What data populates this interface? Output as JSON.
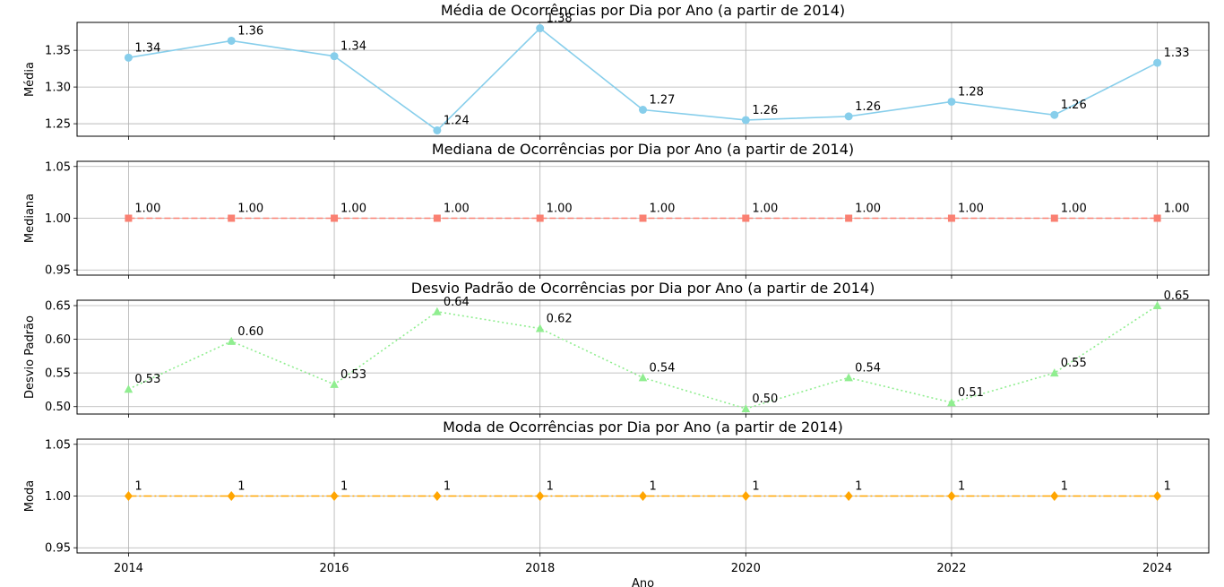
{
  "chart_data": [
    {
      "type": "line",
      "title": "Média de Ocorrências por Dia por Ano (a partir de 2014)",
      "ylabel": "Média",
      "x": [
        2014,
        2015,
        2016,
        2017,
        2018,
        2019,
        2020,
        2021,
        2022,
        2023,
        2024
      ],
      "values": [
        1.34,
        1.363,
        1.342,
        1.241,
        1.38,
        1.269,
        1.255,
        1.26,
        1.28,
        1.262,
        1.333
      ],
      "labels": [
        "1.34",
        "1.36",
        "1.34",
        "1.24",
        "1.38",
        "1.27",
        "1.26",
        "1.26",
        "1.28",
        "1.26",
        "1.33"
      ],
      "ylim": [
        1.233,
        1.388
      ],
      "yticks": [
        1.25,
        1.3,
        1.35
      ],
      "ytick_labels": [
        "1.25",
        "1.30",
        "1.35"
      ],
      "color": "#87ceeb",
      "line_style": "solid",
      "marker": "circle",
      "grid": true
    },
    {
      "type": "line",
      "title": "Mediana de Ocorrências por Dia por Ano (a partir de 2014)",
      "ylabel": "Mediana",
      "x": [
        2014,
        2015,
        2016,
        2017,
        2018,
        2019,
        2020,
        2021,
        2022,
        2023,
        2024
      ],
      "values": [
        1,
        1,
        1,
        1,
        1,
        1,
        1,
        1,
        1,
        1,
        1
      ],
      "labels": [
        "1.00",
        "1.00",
        "1.00",
        "1.00",
        "1.00",
        "1.00",
        "1.00",
        "1.00",
        "1.00",
        "1.00",
        "1.00"
      ],
      "ylim": [
        0.945,
        1.055
      ],
      "yticks": [
        0.95,
        1.0,
        1.05
      ],
      "ytick_labels": [
        "0.95",
        "1.00",
        "1.05"
      ],
      "color": "#fa8072",
      "line_style": "dashed",
      "marker": "square",
      "grid": true
    },
    {
      "type": "line",
      "title": "Desvio Padrão de Ocorrências por Dia por Ano (a partir de 2014)",
      "ylabel": "Desvio Padrão",
      "x": [
        2014,
        2015,
        2016,
        2017,
        2018,
        2019,
        2020,
        2021,
        2022,
        2023,
        2024
      ],
      "values": [
        0.526,
        0.597,
        0.533,
        0.641,
        0.616,
        0.543,
        0.497,
        0.543,
        0.506,
        0.55,
        0.65
      ],
      "labels": [
        "0.53",
        "0.60",
        "0.53",
        "0.64",
        "0.62",
        "0.54",
        "0.50",
        "0.54",
        "0.51",
        "0.55",
        "0.65"
      ],
      "ylim": [
        0.489,
        0.658
      ],
      "yticks": [
        0.5,
        0.55,
        0.6,
        0.65
      ],
      "ytick_labels": [
        "0.50",
        "0.55",
        "0.60",
        "0.65"
      ],
      "color": "#90ee90",
      "line_style": "dotted",
      "marker": "triangle",
      "grid": true
    },
    {
      "type": "line",
      "title": "Moda de Ocorrências por Dia por Ano (a partir de 2014)",
      "ylabel": "Moda",
      "xlabel": "Ano",
      "x": [
        2014,
        2015,
        2016,
        2017,
        2018,
        2019,
        2020,
        2021,
        2022,
        2023,
        2024
      ],
      "values": [
        1,
        1,
        1,
        1,
        1,
        1,
        1,
        1,
        1,
        1,
        1
      ],
      "labels": [
        "1",
        "1",
        "1",
        "1",
        "1",
        "1",
        "1",
        "1",
        "1",
        "1",
        "1"
      ],
      "ylim": [
        0.945,
        1.055
      ],
      "yticks": [
        0.95,
        1.0,
        1.05
      ],
      "ytick_labels": [
        "0.95",
        "1.00",
        "1.05"
      ],
      "color": "#ffa500",
      "line_style": "dashdot",
      "marker": "diamond",
      "grid": true
    }
  ],
  "x_axis": {
    "ticks": [
      2014,
      2016,
      2018,
      2020,
      2022,
      2024
    ],
    "tick_labels": [
      "2014",
      "2016",
      "2018",
      "2020",
      "2022",
      "2024"
    ],
    "xlim": [
      2013.5,
      2024.5
    ],
    "xlabel": "Ano"
  }
}
